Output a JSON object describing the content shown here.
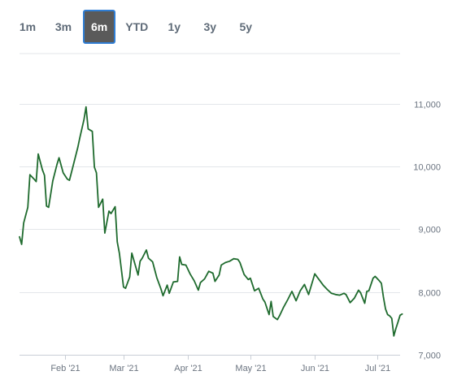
{
  "range_buttons": [
    {
      "label": "1m"
    },
    {
      "label": "3m"
    },
    {
      "label": "6m"
    },
    {
      "label": "YTD"
    },
    {
      "label": "1y"
    },
    {
      "label": "3y"
    },
    {
      "label": "5y"
    }
  ],
  "active_range": "6m",
  "colors": {
    "line": "#1f6b2e",
    "grid": "#e3e6ea",
    "axis_text": "#6b7480"
  },
  "chart_data": {
    "type": "line",
    "title": "",
    "xlabel": "",
    "ylabel": "",
    "ylim": [
      7000,
      11800
    ],
    "y_ticks": [
      7000,
      8000,
      9000,
      10000,
      11000
    ],
    "y_tick_labels": [
      "7,000",
      "8,000",
      "9,000",
      "10,000",
      "11,000"
    ],
    "grid": true,
    "x_ticks": [
      {
        "date": "2021-02-01",
        "label": "Feb '21"
      },
      {
        "date": "2021-03-01",
        "label": "Mar '21"
      },
      {
        "date": "2021-04-01",
        "label": "Apr '21"
      },
      {
        "date": "2021-05-01",
        "label": "May '21"
      },
      {
        "date": "2021-06-01",
        "label": "Jun '21"
      },
      {
        "date": "2021-07-01",
        "label": "Jul '21"
      }
    ],
    "xlim": [
      "2021-01-10",
      "2021-07-12"
    ],
    "series": [
      {
        "points": [
          [
            "2021-01-10",
            8880
          ],
          [
            "2021-01-11",
            8760
          ],
          [
            "2021-01-12",
            9100
          ],
          [
            "2021-01-14",
            9350
          ],
          [
            "2021-01-15",
            9870
          ],
          [
            "2021-01-17",
            9800
          ],
          [
            "2021-01-18",
            9760
          ],
          [
            "2021-01-19",
            10200
          ],
          [
            "2021-01-21",
            9950
          ],
          [
            "2021-01-22",
            9860
          ],
          [
            "2021-01-23",
            9370
          ],
          [
            "2021-01-24",
            9350
          ],
          [
            "2021-01-26",
            9770
          ],
          [
            "2021-01-28",
            10030
          ],
          [
            "2021-01-29",
            10140
          ],
          [
            "2021-01-31",
            9900
          ],
          [
            "2021-02-02",
            9800
          ],
          [
            "2021-02-03",
            9780
          ],
          [
            "2021-02-05",
            10040
          ],
          [
            "2021-02-07",
            10300
          ],
          [
            "2021-02-08",
            10460
          ],
          [
            "2021-02-10",
            10750
          ],
          [
            "2021-02-11",
            10950
          ],
          [
            "2021-02-12",
            10600
          ],
          [
            "2021-02-14",
            10560
          ],
          [
            "2021-02-15",
            9990
          ],
          [
            "2021-02-16",
            9900
          ],
          [
            "2021-02-17",
            9350
          ],
          [
            "2021-02-19",
            9480
          ],
          [
            "2021-02-20",
            8940
          ],
          [
            "2021-02-22",
            9290
          ],
          [
            "2021-02-23",
            9250
          ],
          [
            "2021-02-25",
            9360
          ],
          [
            "2021-02-26",
            8800
          ],
          [
            "2021-02-27",
            8620
          ],
          [
            "2021-03-01",
            8080
          ],
          [
            "2021-03-02",
            8060
          ],
          [
            "2021-03-04",
            8240
          ],
          [
            "2021-03-05",
            8620
          ],
          [
            "2021-03-08",
            8270
          ],
          [
            "2021-03-09",
            8490
          ],
          [
            "2021-03-10",
            8540
          ],
          [
            "2021-03-12",
            8670
          ],
          [
            "2021-03-13",
            8540
          ],
          [
            "2021-03-15",
            8480
          ],
          [
            "2021-03-17",
            8230
          ],
          [
            "2021-03-19",
            8050
          ],
          [
            "2021-03-20",
            7940
          ],
          [
            "2021-03-22",
            8110
          ],
          [
            "2021-03-23",
            7980
          ],
          [
            "2021-03-25",
            8160
          ],
          [
            "2021-03-27",
            8170
          ],
          [
            "2021-03-28",
            8560
          ],
          [
            "2021-03-29",
            8440
          ],
          [
            "2021-03-31",
            8430
          ],
          [
            "2021-04-02",
            8290
          ],
          [
            "2021-04-04",
            8180
          ],
          [
            "2021-04-06",
            8030
          ],
          [
            "2021-04-07",
            8150
          ],
          [
            "2021-04-09",
            8210
          ],
          [
            "2021-04-11",
            8330
          ],
          [
            "2021-04-13",
            8300
          ],
          [
            "2021-04-14",
            8170
          ],
          [
            "2021-04-16",
            8270
          ],
          [
            "2021-04-17",
            8430
          ],
          [
            "2021-04-19",
            8470
          ],
          [
            "2021-04-21",
            8490
          ],
          [
            "2021-04-23",
            8530
          ],
          [
            "2021-04-25",
            8520
          ],
          [
            "2021-04-26",
            8470
          ],
          [
            "2021-04-28",
            8280
          ],
          [
            "2021-04-30",
            8200
          ],
          [
            "2021-05-01",
            8220
          ],
          [
            "2021-05-03",
            8020
          ],
          [
            "2021-05-05",
            8060
          ],
          [
            "2021-05-07",
            7890
          ],
          [
            "2021-05-08",
            7840
          ],
          [
            "2021-05-10",
            7640
          ],
          [
            "2021-05-11",
            7850
          ],
          [
            "2021-05-12",
            7610
          ],
          [
            "2021-05-14",
            7560
          ],
          [
            "2021-05-15",
            7620
          ],
          [
            "2021-05-17",
            7760
          ],
          [
            "2021-05-19",
            7880
          ],
          [
            "2021-05-21",
            8010
          ],
          [
            "2021-05-23",
            7860
          ],
          [
            "2021-05-25",
            8020
          ],
          [
            "2021-05-27",
            8120
          ],
          [
            "2021-05-29",
            7960
          ],
          [
            "2021-05-31",
            8180
          ],
          [
            "2021-06-01",
            8290
          ],
          [
            "2021-06-03",
            8200
          ],
          [
            "2021-06-05",
            8110
          ],
          [
            "2021-06-07",
            8040
          ],
          [
            "2021-06-09",
            7980
          ],
          [
            "2021-06-11",
            7960
          ],
          [
            "2021-06-13",
            7950
          ],
          [
            "2021-06-15",
            7980
          ],
          [
            "2021-06-16",
            7960
          ],
          [
            "2021-06-18",
            7830
          ],
          [
            "2021-06-20",
            7900
          ],
          [
            "2021-06-22",
            8030
          ],
          [
            "2021-06-23",
            7990
          ],
          [
            "2021-06-25",
            7820
          ],
          [
            "2021-06-26",
            8010
          ],
          [
            "2021-06-27",
            8020
          ],
          [
            "2021-06-29",
            8220
          ],
          [
            "2021-06-30",
            8250
          ],
          [
            "2021-07-02",
            8180
          ],
          [
            "2021-07-03",
            8140
          ],
          [
            "2021-07-04",
            7920
          ],
          [
            "2021-07-05",
            7730
          ],
          [
            "2021-07-06",
            7640
          ],
          [
            "2021-07-07",
            7620
          ],
          [
            "2021-07-08",
            7580
          ],
          [
            "2021-07-09",
            7300
          ],
          [
            "2021-07-10",
            7420
          ],
          [
            "2021-07-11",
            7520
          ],
          [
            "2021-07-12",
            7630
          ],
          [
            "2021-07-13",
            7650
          ]
        ]
      }
    ]
  }
}
